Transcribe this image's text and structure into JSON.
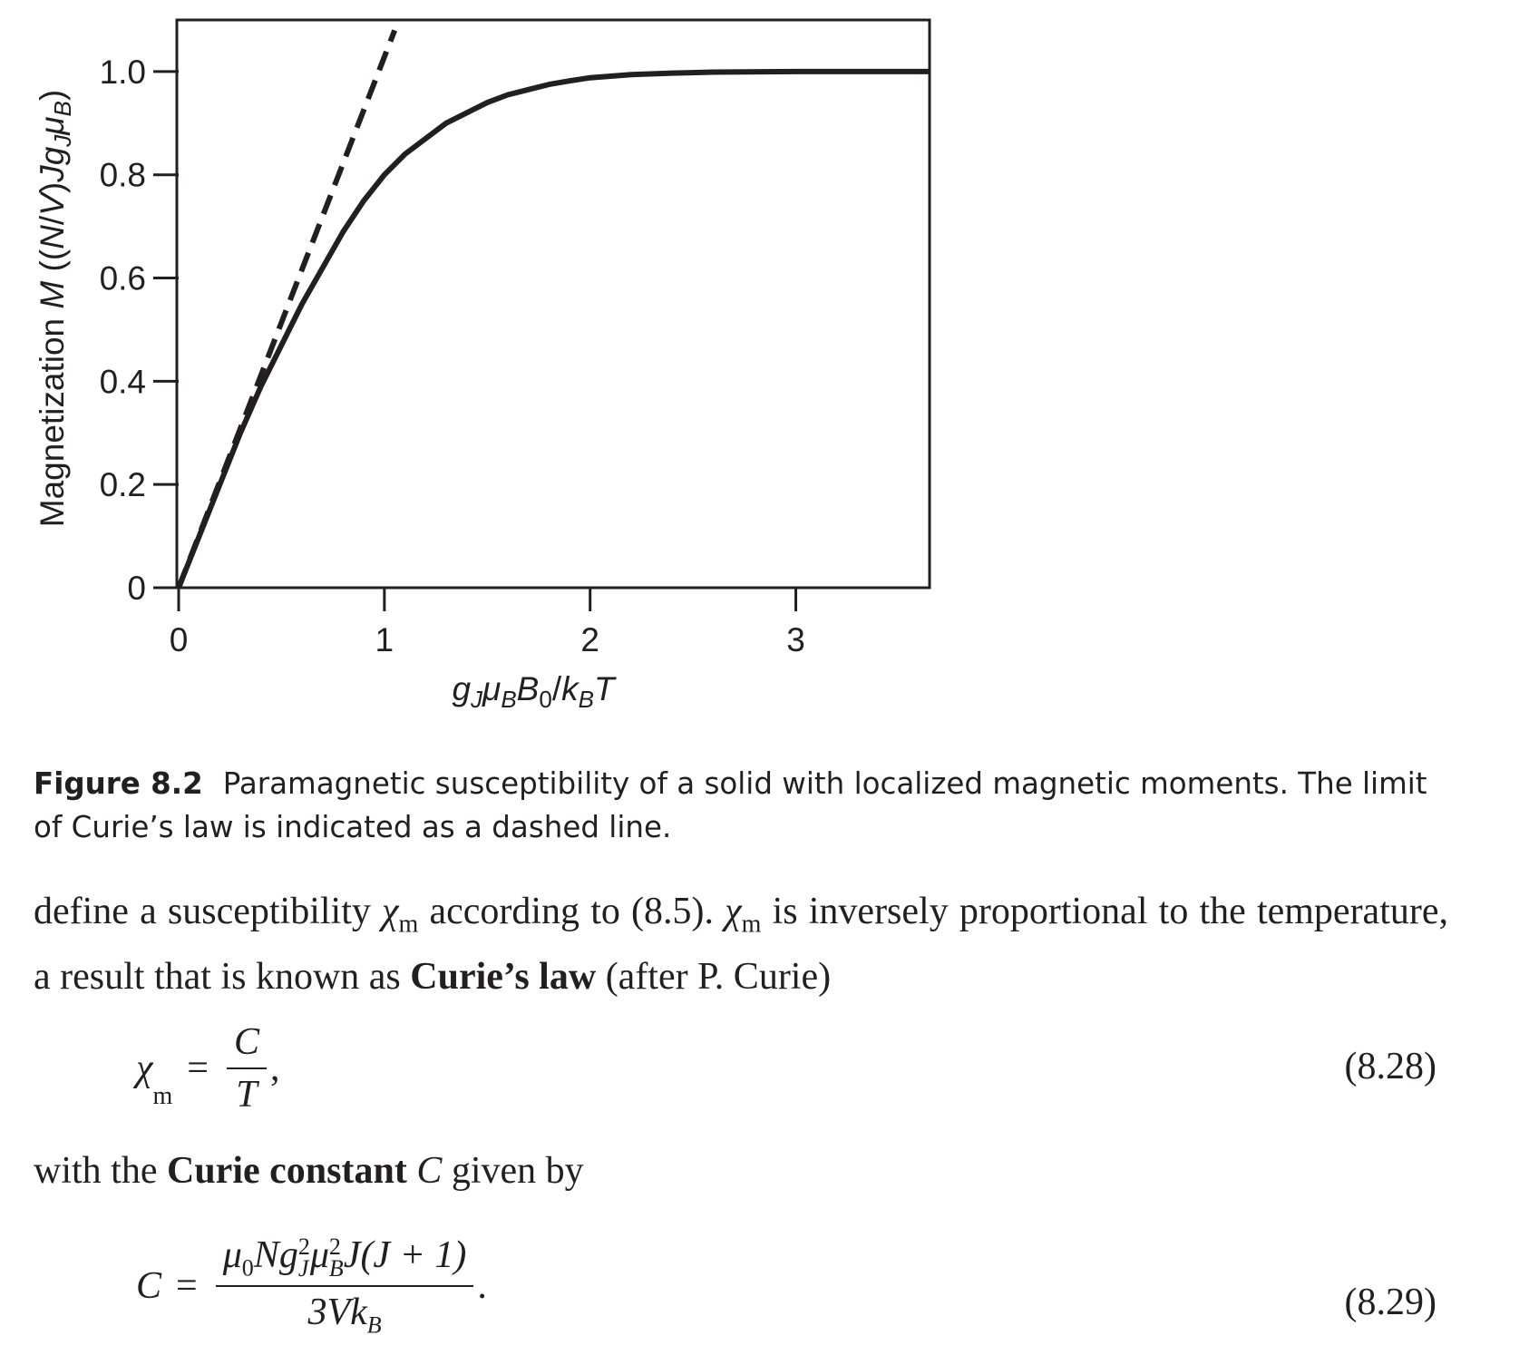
{
  "chart_data": {
    "type": "line",
    "xlabel": "g_Jμ_BB_0/k_BT",
    "ylabel": "Magnetization M ((N/V)Jg_Jμ_B)",
    "xlim": [
      0,
      3.65
    ],
    "ylim": [
      0,
      1.1
    ],
    "x_ticks": [
      "0",
      "1",
      "2",
      "3"
    ],
    "y_ticks": [
      "0",
      "0.2",
      "0.4",
      "0.6",
      "0.8",
      "1.0"
    ],
    "grid": false,
    "series": [
      {
        "style": "solid",
        "x": [
          0,
          0.1,
          0.2,
          0.3,
          0.4,
          0.5,
          0.6,
          0.7,
          0.8,
          0.9,
          1.0,
          1.1,
          1.2,
          1.3,
          1.4,
          1.5,
          1.6,
          1.7,
          1.8,
          1.9,
          2.0,
          2.2,
          2.4,
          2.6,
          3.0,
          3.3,
          3.65
        ],
        "y": [
          0,
          0.1,
          0.2,
          0.3,
          0.39,
          0.47,
          0.55,
          0.62,
          0.69,
          0.75,
          0.8,
          0.84,
          0.87,
          0.9,
          0.92,
          0.94,
          0.955,
          0.965,
          0.975,
          0.982,
          0.988,
          0.994,
          0.997,
          0.999,
          1.0,
          1.0,
          1.0
        ]
      },
      {
        "style": "dashed",
        "x": [
          0,
          1.05
        ],
        "y": [
          0,
          1.08
        ]
      }
    ]
  },
  "caption": {
    "label": "Figure 8.2",
    "text": "Paramagnetic susceptibility of a solid with localized magnetic moments. The limit of Curie’s law is indicated as a dashed line."
  },
  "para1": {
    "t1": "define a susceptibility ",
    "chi": "χ",
    "sub_m": "m",
    "t2": " according to (8.5). ",
    "t3": " is inversely proportional to the temperature, a result that is known as ",
    "bold": "Curie’s law",
    "t4": " (after P. Curie)"
  },
  "eq1": {
    "lhs_chi": "χ",
    "lhs_sub": "m",
    "equals": "=",
    "num": "C",
    "den": "T",
    "trail": ",",
    "number": "(8.28)"
  },
  "para2": {
    "t1": "with the ",
    "bold": "Curie constant",
    "var": "C",
    "t2": " given by"
  },
  "eq2": {
    "lhs": "C",
    "equals": "=",
    "num_mu": "μ",
    "num_0": "0",
    "num_N": "N",
    "num_g": "g",
    "num_J_sub": "J",
    "sq": "2",
    "num_muB": "μ",
    "num_B_sub": "B",
    "num_rest": "J(J + 1)",
    "den_3V": "3V",
    "den_k": "k",
    "den_B": "B",
    "trail": ".",
    "number": "(8.29)"
  }
}
